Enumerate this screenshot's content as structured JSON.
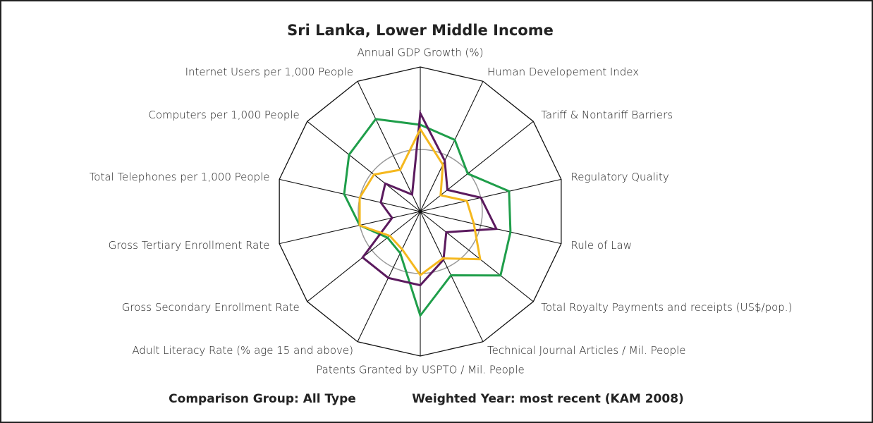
{
  "chart_data": {
    "type": "radar",
    "title": "Sri Lanka, Lower Middle Income",
    "footer": [
      "Comparison Group: All Type",
      "Weighted Year: most recent (KAM 2008)"
    ],
    "categories": [
      "Annual GDP Growth (%)",
      "Human Developement Index",
      "Tariff & Nontariff Barriers",
      "Regulatory Quality",
      "Rule of Law",
      "Total Royalty Payments and receipts (US$/pop.)",
      "Technical Journal Articles / Mil. People",
      "Patents Granted by USPTO / Mil. People",
      "Adult Literacy Rate (% age 15 and above)",
      "Gross Secondary Enrollment Rate",
      "Gross Tertiary Enrollment Rate",
      "Total Telephones per 1,000 People",
      "Computers per 1,000 People",
      "Internet Users per 1,000 People"
    ],
    "rlim": [
      0,
      10
    ],
    "series": [
      {
        "color": "#1f9e4a",
        "values": [
          6.0,
          5.5,
          4.2,
          6.3,
          6.4,
          7.1,
          4.9,
          7.2,
          3.2,
          2.9,
          4.3,
          5.4,
          6.3,
          7.1
        ]
      },
      {
        "color": "#5b1a5e",
        "values": [
          6.8,
          3.9,
          2.4,
          4.3,
          5.4,
          2.3,
          3.7,
          5.1,
          5.1,
          5.1,
          2.0,
          2.8,
          3.1,
          1.3
        ]
      },
      {
        "color": "#f5b81e",
        "values": [
          5.7,
          3.6,
          1.8,
          3.3,
          3.8,
          5.3,
          3.6,
          4.4,
          2.9,
          2.7,
          4.3,
          4.3,
          4.1,
          3.2
        ]
      }
    ]
  }
}
